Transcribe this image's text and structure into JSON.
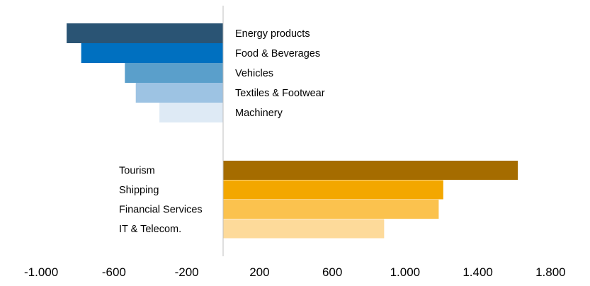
{
  "chart_data": {
    "type": "bar",
    "orientation": "horizontal",
    "xlim": [
      -1000,
      1800
    ],
    "x_ticks": [
      "-1.000",
      "-600",
      "-200",
      "200",
      "600",
      "1.000",
      "1.400",
      "1.800"
    ],
    "x_tick_values": [
      -1000,
      -600,
      -200,
      200,
      600,
      1000,
      1400,
      1800
    ],
    "groups": [
      {
        "bars": [
          {
            "label": "Energy products",
            "value": -860,
            "color": "#2a5474"
          },
          {
            "label": "Food & Beverages",
            "value": -780,
            "color": "#0070c0"
          },
          {
            "label": "Vehicles",
            "value": -540,
            "color": "#5a9fcb"
          },
          {
            "label": "Textiles & Footwear",
            "value": -480,
            "color": "#9dc3e3"
          },
          {
            "label": "Machinery",
            "value": -350,
            "color": "#deeaf5"
          }
        ]
      },
      {
        "bars": [
          {
            "label": "Tourism",
            "value": 1620,
            "color": "#a56c00"
          },
          {
            "label": "Shipping",
            "value": 1210,
            "color": "#f3a700"
          },
          {
            "label": "Financial Services",
            "value": 1185,
            "color": "#fbc24e"
          },
          {
            "label": "IT & Telecom.",
            "value": 885,
            "color": "#fdda9a"
          }
        ]
      }
    ],
    "title": "",
    "xlabel": "",
    "ylabel": "",
    "grid": false,
    "legend": "none"
  }
}
